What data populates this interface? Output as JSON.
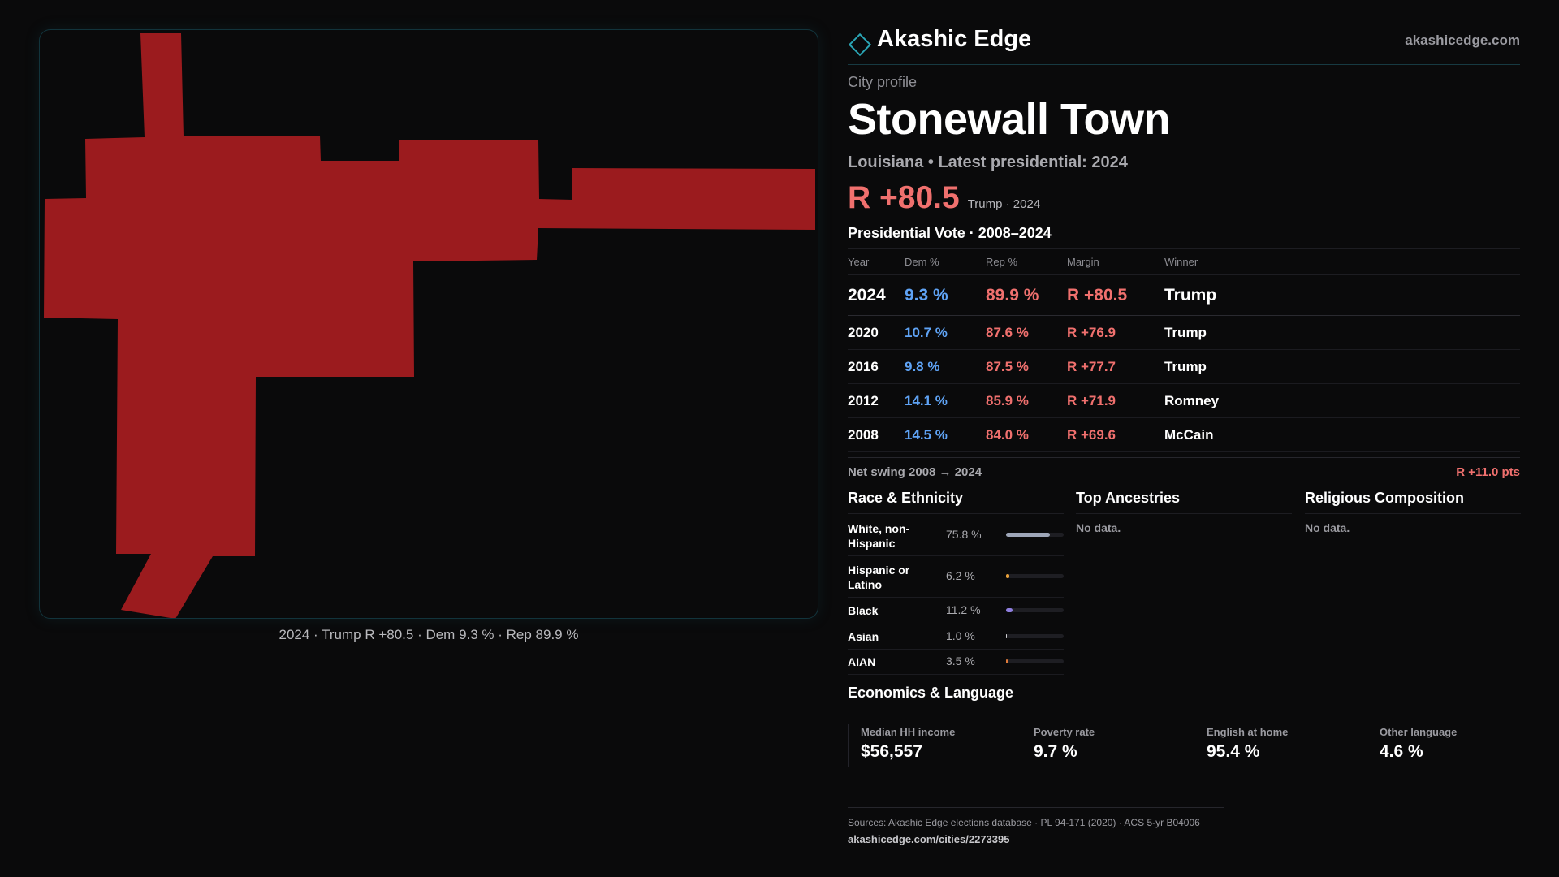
{
  "brand": {
    "name": "Akashic Edge",
    "url": "akashicedge.com"
  },
  "profile": {
    "label": "City profile",
    "city": "Stonewall Town",
    "subtitle": "Louisiana • Latest presidential: 2024",
    "headline_margin": "R +80.5",
    "headline_note": "Trump · 2024"
  },
  "map": {
    "fill_color": "#9b1b1e",
    "caption": "2024 · Trump R +80.5 · Dem 9.3 % · Rep 89.9 %"
  },
  "presidential": {
    "title": "Presidential Vote · 2008–2024",
    "columns": [
      "Year",
      "Dem %",
      "Rep %",
      "Margin",
      "Winner"
    ],
    "rows": [
      {
        "year": "2024",
        "dem": "9.3 %",
        "rep": "89.9 %",
        "margin": "R +80.5",
        "winner": "Trump"
      },
      {
        "year": "2020",
        "dem": "10.7 %",
        "rep": "87.6 %",
        "margin": "R +76.9",
        "winner": "Trump"
      },
      {
        "year": "2016",
        "dem": "9.8 %",
        "rep": "87.5 %",
        "margin": "R +77.7",
        "winner": "Trump"
      },
      {
        "year": "2012",
        "dem": "14.1 %",
        "rep": "85.9 %",
        "margin": "R +71.9",
        "winner": "Romney"
      },
      {
        "year": "2008",
        "dem": "14.5 %",
        "rep": "84.0 %",
        "margin": "R +69.6",
        "winner": "McCain"
      }
    ],
    "swing_label": "Net swing 2008 → 2024",
    "swing_value": "R +11.0 pts"
  },
  "race": {
    "title": "Race & Ethnicity",
    "rows": [
      {
        "label": "White, non-Hispanic",
        "value": "75.8 %",
        "pct": 75.8,
        "color": "#9ea6b8"
      },
      {
        "label": "Hispanic or Latino",
        "value": "6.2 %",
        "pct": 6.2,
        "color": "#e8a13a"
      },
      {
        "label": "Black",
        "value": "11.2 %",
        "pct": 11.2,
        "color": "#8f7fe0"
      },
      {
        "label": "Asian",
        "value": "1.0 %",
        "pct": 1.0,
        "color": "#d0d0d4"
      },
      {
        "label": "AIAN",
        "value": "3.5 %",
        "pct": 3.5,
        "color": "#e07a3a"
      }
    ]
  },
  "ancestries": {
    "title": "Top Ancestries",
    "empty": "No data."
  },
  "religion": {
    "title": "Religious Composition",
    "empty": "No data."
  },
  "economics": {
    "title": "Economics & Language",
    "cells": [
      {
        "label": "Median HH income",
        "value": "$56,557"
      },
      {
        "label": "Poverty rate",
        "value": "9.7 %"
      },
      {
        "label": "English at home",
        "value": "95.4 %"
      },
      {
        "label": "Other language",
        "value": "4.6 %"
      }
    ]
  },
  "sources": {
    "text": "Sources: Akashic Edge elections database · PL 94-171 (2020) · ACS 5-yr B04006",
    "url": "akashicedge.com/cities/2273395"
  }
}
